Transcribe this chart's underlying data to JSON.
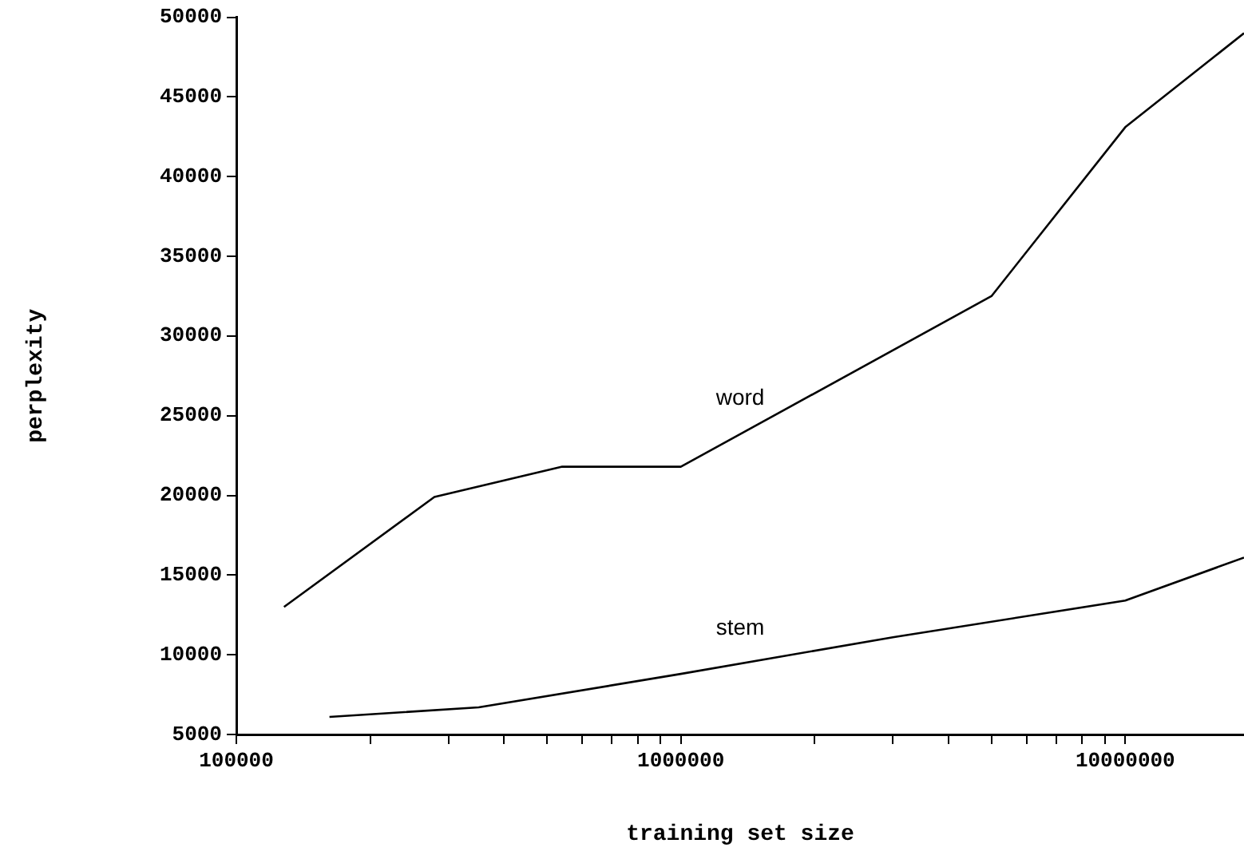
{
  "chart_data": {
    "type": "line",
    "xlabel": "training set size",
    "ylabel": "perplexity",
    "log": "x",
    "xlim": [
      100000,
      18500000
    ],
    "xticks": [
      100000,
      {
        "value": 200000,
        "label": null
      },
      {
        "value": 300000,
        "label": null
      },
      {
        "value": 400000,
        "label": null
      },
      {
        "value": 500000,
        "label": null
      },
      {
        "value": 600000,
        "label": null
      },
      {
        "value": 700000,
        "label": null
      },
      {
        "value": 800000,
        "label": null
      },
      {
        "value": 900000,
        "label": null
      },
      1000000,
      {
        "value": 2000000,
        "label": null
      },
      {
        "value": 3000000,
        "label": null
      },
      {
        "value": 4000000,
        "label": null
      },
      {
        "value": 5000000,
        "label": null
      },
      {
        "value": 6000000,
        "label": null
      },
      {
        "value": 7000000,
        "label": null
      },
      {
        "value": 8000000,
        "label": null
      },
      {
        "value": 9000000,
        "label": null
      },
      10000000
    ],
    "ylim": [
      5000,
      50000
    ],
    "yticks": [
      5000,
      10000,
      15000,
      20000,
      25000,
      30000,
      35000,
      40000,
      45000,
      50000
    ],
    "grid": false,
    "legend": false,
    "marker": "none",
    "line_style": "solid",
    "series": [
      {
        "name": "word",
        "color": "#000000",
        "x": [
          128000,
          279000,
          541000,
          1000000,
          5000000,
          10000000,
          18500000
        ],
        "values": [
          13000,
          19900,
          21800,
          21800,
          32500,
          43100,
          49000
        ]
      },
      {
        "name": "stem",
        "color": "#000000",
        "x": [
          162000,
          351000,
          1000000,
          3000000,
          10000000,
          18500000
        ],
        "values": [
          6100,
          6700,
          8800,
          11100,
          13400,
          16100
        ]
      }
    ]
  }
}
